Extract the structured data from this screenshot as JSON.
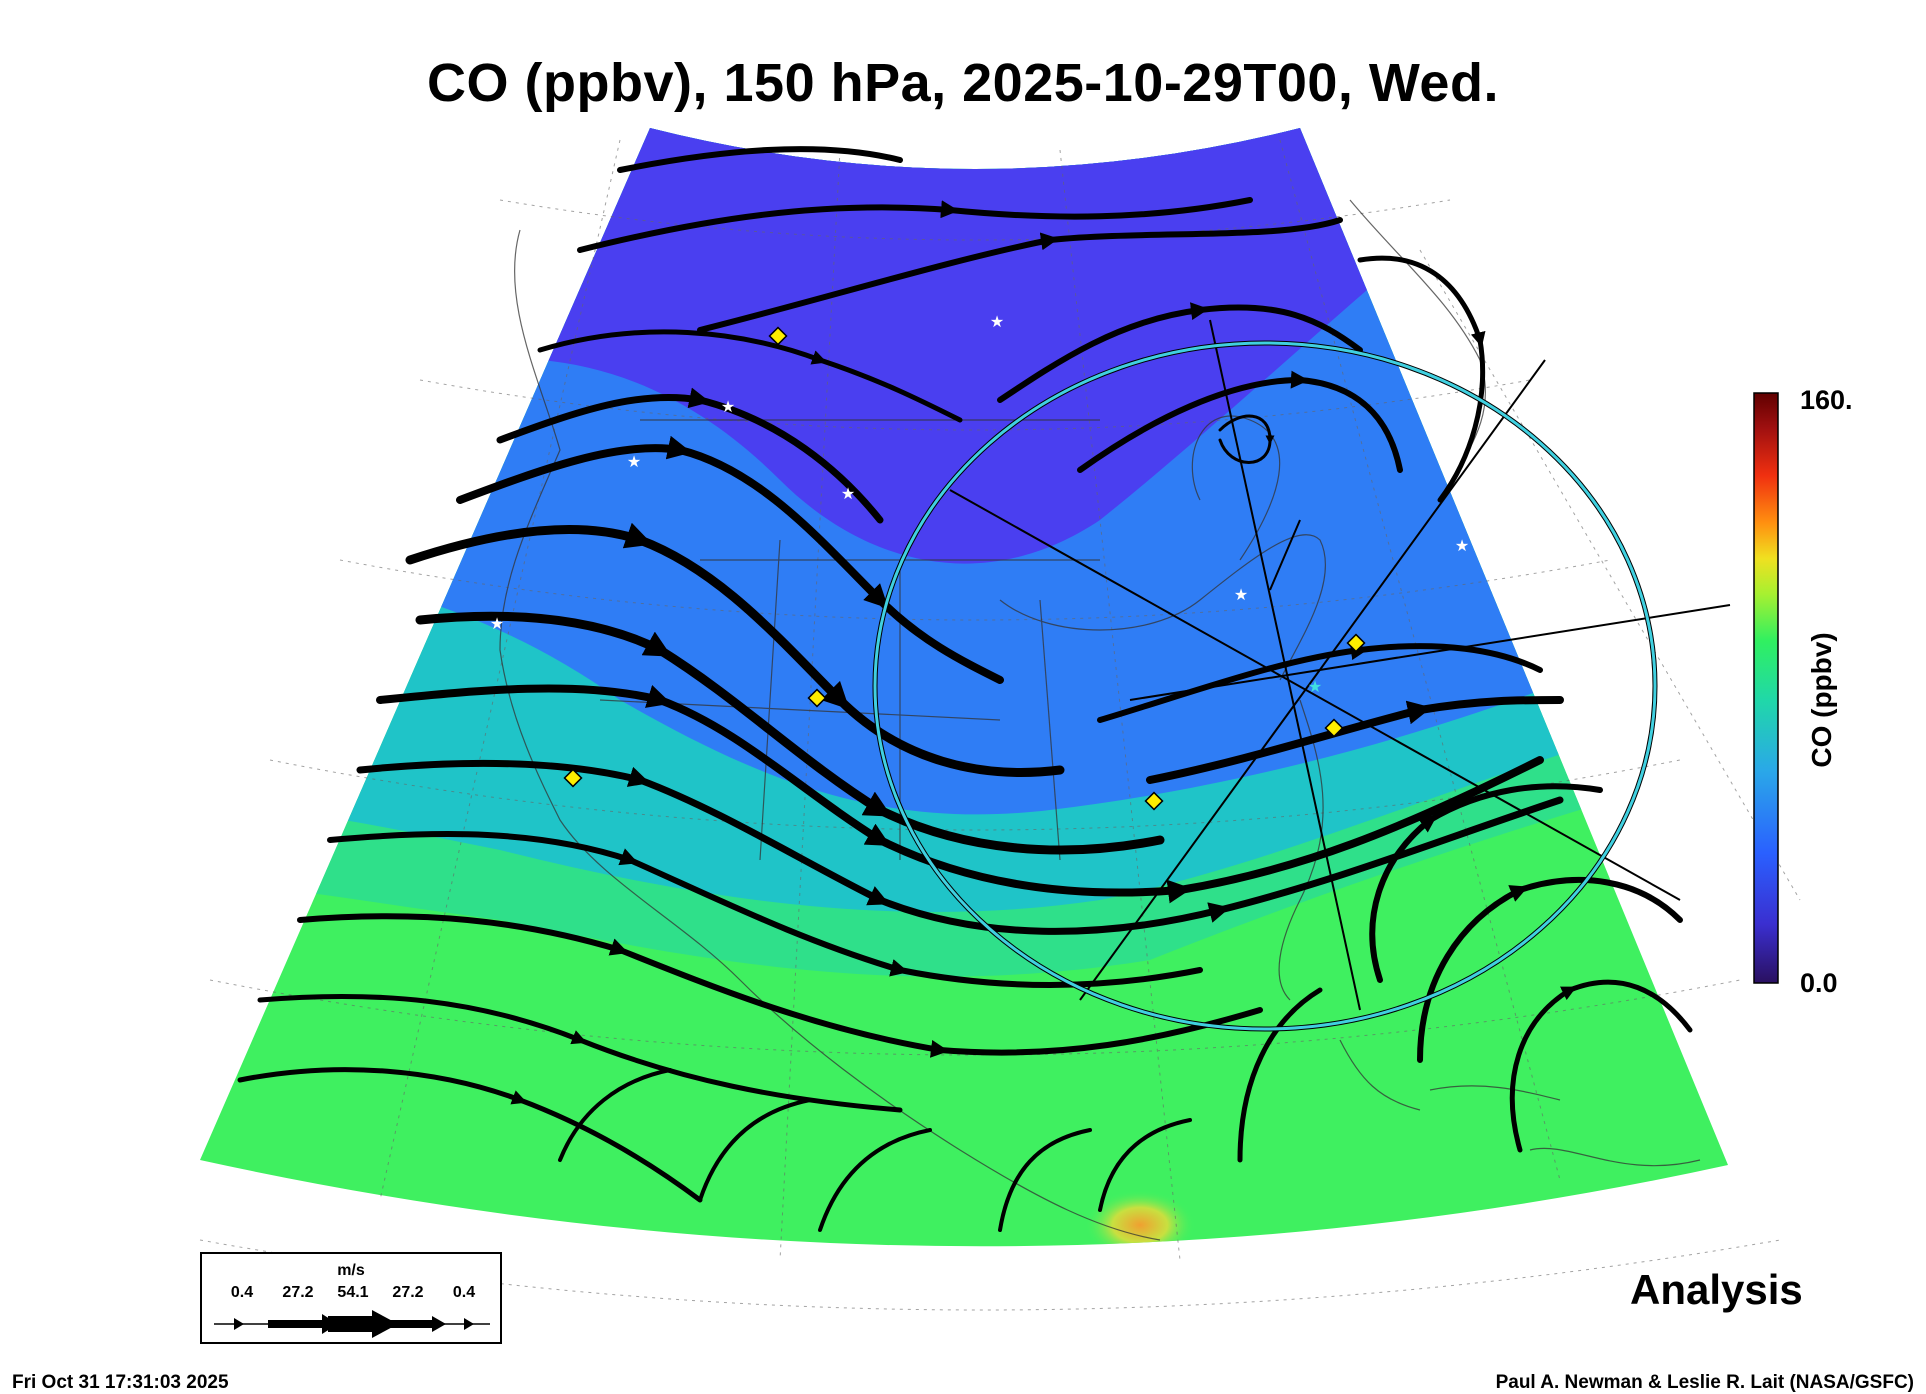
{
  "title": "CO (ppbv), 150 hPa, 2025-10-29T00, Wed.",
  "colorbar": {
    "max_label": "160.",
    "min_label": "0.0",
    "label": "CO (ppbv)",
    "range": [
      0,
      160
    ],
    "colors": [
      "#2a1060",
      "#3a2fd0",
      "#2a60ff",
      "#2aa8e8",
      "#20d8a8",
      "#30f060",
      "#a8f030",
      "#f0e020",
      "#ff9010",
      "#f03010",
      "#a01010",
      "#600000"
    ]
  },
  "field_colors": {
    "low": "#4a3ff0",
    "mid_low": "#2f7df5",
    "mid": "#1fc4c8",
    "mid_high": "#2fe08a",
    "high": "#3ff060",
    "hot_spot": "#f0a030"
  },
  "wind_legend": {
    "unit": "m/s",
    "values": [
      "0.4",
      "27.2",
      "54.1",
      "27.2",
      "0.4"
    ]
  },
  "markers": {
    "diamond_color": "#ffee00",
    "star_color": "#ffffff",
    "flight_circle_color": "#40d0e0"
  },
  "analysis_label": "Analysis",
  "timestamp": "Fri Oct 31 17:31:03 2025",
  "credit": "Paul A. Newman & Leslie R. Lait (NASA/GSFC)"
}
